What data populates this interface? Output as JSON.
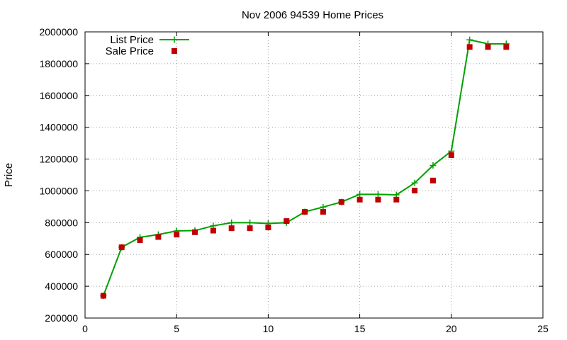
{
  "chart_data": {
    "type": "line",
    "title": "Nov 2006 94539 Home Prices",
    "xlabel": "",
    "ylabel": "Price",
    "xlim": [
      0,
      25
    ],
    "ylim": [
      200000,
      2000000
    ],
    "x_ticks": [
      0,
      5,
      10,
      15,
      20,
      25
    ],
    "y_ticks": [
      200000,
      400000,
      600000,
      800000,
      1000000,
      1200000,
      1400000,
      1600000,
      1800000,
      2000000
    ],
    "grid": true,
    "legend_position": "top-left",
    "series": [
      {
        "name": "List Price",
        "style": "line-with-plus-markers",
        "color": "#00a000",
        "x": [
          1,
          2,
          3,
          4,
          5,
          6,
          7,
          8,
          9,
          10,
          11,
          12,
          13,
          14,
          15,
          16,
          17,
          18,
          19,
          20,
          21,
          22,
          23
        ],
        "values": [
          340000,
          645000,
          708000,
          725000,
          748000,
          750000,
          780000,
          800000,
          800000,
          795000,
          800000,
          868000,
          898000,
          930000,
          978000,
          978000,
          975000,
          1050000,
          1160000,
          1250000,
          1950000,
          1925000,
          1925000
        ]
      },
      {
        "name": "Sale Price",
        "style": "square-markers",
        "color": "#c00000",
        "x": [
          1,
          2,
          3,
          4,
          5,
          6,
          7,
          8,
          9,
          10,
          11,
          12,
          13,
          14,
          15,
          16,
          17,
          18,
          19,
          20,
          21,
          22,
          23
        ],
        "values": [
          340000,
          645000,
          690000,
          710000,
          725000,
          740000,
          750000,
          765000,
          765000,
          770000,
          810000,
          868000,
          868000,
          930000,
          945000,
          945000,
          945000,
          1002000,
          1065000,
          1225000,
          1905000,
          1905000,
          1905000
        ]
      }
    ]
  }
}
